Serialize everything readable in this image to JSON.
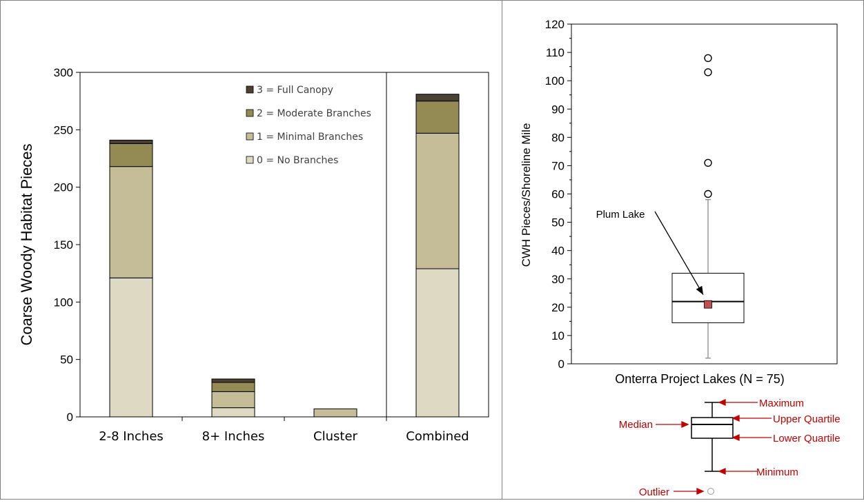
{
  "chart_data": [
    {
      "type": "bar",
      "stacked": true,
      "title": "",
      "xlabel": "",
      "ylabel": "Coarse Woody Habitat Pieces",
      "ylim": [
        0,
        300
      ],
      "yticks": [
        0,
        50,
        100,
        150,
        200,
        250,
        300
      ],
      "categories": [
        "2-8 Inches",
        "8+ Inches",
        "Cluster",
        "Combined"
      ],
      "series": [
        {
          "name": "0 = No Branches",
          "color": "#DDD9C3",
          "values": [
            121,
            8,
            0,
            129
          ]
        },
        {
          "name": "1 = Minimal Branches",
          "color": "#C4BD97",
          "values": [
            97,
            14,
            7,
            118
          ]
        },
        {
          "name": "2 = Moderate Branches",
          "color": "#948A54",
          "values": [
            20,
            8,
            0,
            28
          ]
        },
        {
          "name": "3 = Full Canopy",
          "color": "#4A4132",
          "values": [
            3,
            3,
            0,
            6
          ]
        }
      ],
      "legend_position": "top-right",
      "grid": false
    },
    {
      "type": "box",
      "xlabel": "Onterra Project Lakes (N = 75)",
      "ylabel": "CWH Pieces/Shoreline Mile",
      "ylim": [
        0,
        120
      ],
      "yticks": [
        0,
        10,
        20,
        30,
        40,
        50,
        60,
        70,
        80,
        90,
        100,
        110,
        120
      ],
      "box": {
        "min": 2,
        "q1": 14.5,
        "median": 22,
        "q3": 32,
        "max": 58
      },
      "outliers": [
        60,
        71,
        103,
        108
      ],
      "highlight": {
        "label": "Plum Lake",
        "value": 21,
        "color": "#C0504D"
      }
    }
  ],
  "box_legend": {
    "labels": {
      "maximum": "Maximum",
      "upper_quartile": "Upper Quartile",
      "median": "Median",
      "lower_quartile": "Lower Quartile",
      "minimum": "Minimum",
      "outlier": "Outlier"
    },
    "label_color": "#C00000"
  }
}
